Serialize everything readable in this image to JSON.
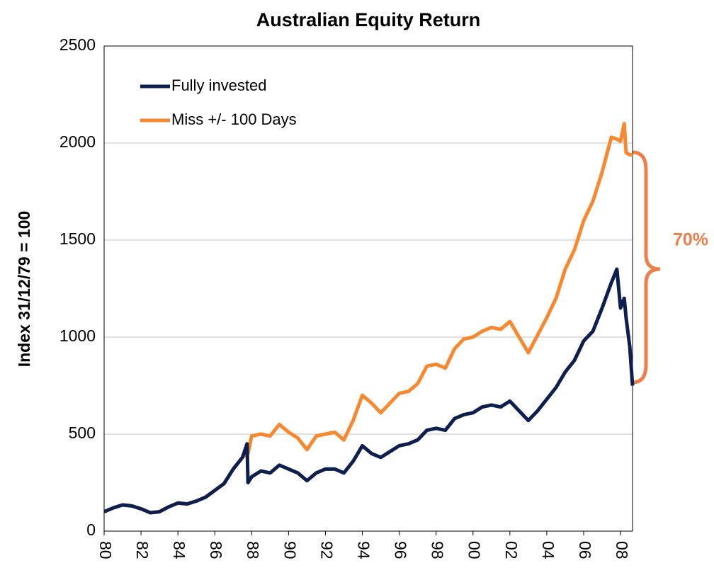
{
  "chart_data": {
    "type": "line",
    "title": "Australian Equity Return",
    "y_label": "Index 31/12/79 = 100",
    "annotation": "70%",
    "x": [
      1980,
      1980.5,
      1981,
      1981.5,
      1982,
      1982.5,
      1983,
      1983.5,
      1984,
      1984.5,
      1985,
      1985.5,
      1986,
      1986.5,
      1987,
      1987.5,
      1987.75,
      1987.8,
      1988,
      1988.5,
      1989,
      1989.5,
      1990,
      1990.5,
      1991,
      1991.5,
      1992,
      1992.5,
      1993,
      1993.5,
      1994,
      1994.5,
      1995,
      1995.5,
      1996,
      1996.5,
      1997,
      1997.5,
      1998,
      1998.5,
      1999,
      1999.5,
      2000,
      2000.5,
      2001,
      2001.5,
      2002,
      2002.5,
      2003,
      2003.5,
      2004,
      2004.5,
      2005,
      2005.5,
      2006,
      2006.5,
      2007,
      2007.5,
      2007.8,
      2008,
      2008.2,
      2008.3,
      2008.5,
      2008.65
    ],
    "series": [
      {
        "name": "Fully invested",
        "color": "#0d1f4f",
        "values": [
          100,
          120,
          135,
          130,
          115,
          95,
          100,
          125,
          145,
          140,
          155,
          175,
          210,
          245,
          320,
          380,
          450,
          250,
          280,
          310,
          300,
          340,
          320,
          300,
          260,
          300,
          320,
          320,
          300,
          360,
          440,
          400,
          380,
          410,
          440,
          450,
          470,
          520,
          530,
          520,
          580,
          600,
          610,
          640,
          650,
          640,
          670,
          620,
          570,
          620,
          680,
          740,
          820,
          880,
          980,
          1030,
          1150,
          1280,
          1350,
          1150,
          1200,
          1100,
          950,
          750
        ]
      },
      {
        "name": "Miss +/- 100 Days",
        "color": "#f7882f",
        "values": [
          100,
          120,
          135,
          130,
          115,
          95,
          100,
          125,
          145,
          140,
          155,
          175,
          210,
          245,
          320,
          380,
          400,
          400,
          490,
          500,
          490,
          550,
          510,
          480,
          420,
          490,
          500,
          510,
          470,
          570,
          700,
          660,
          610,
          660,
          710,
          720,
          760,
          850,
          860,
          840,
          940,
          990,
          1000,
          1030,
          1050,
          1040,
          1080,
          1000,
          920,
          1010,
          1100,
          1200,
          1350,
          1450,
          1600,
          1700,
          1850,
          2030,
          2020,
          2010,
          2100,
          1950,
          1940,
          1940
        ]
      }
    ],
    "xlim": [
      1980,
      2008.65
    ],
    "xticks": [
      {
        "value": 1980,
        "label": "80"
      },
      {
        "value": 1982,
        "label": "82"
      },
      {
        "value": 1984,
        "label": "84"
      },
      {
        "value": 1986,
        "label": "86"
      },
      {
        "value": 1988,
        "label": "88"
      },
      {
        "value": 1990,
        "label": "90"
      },
      {
        "value": 1992,
        "label": "92"
      },
      {
        "value": 1994,
        "label": "94"
      },
      {
        "value": 1996,
        "label": "96"
      },
      {
        "value": 1998,
        "label": "98"
      },
      {
        "value": 2000,
        "label": "00"
      },
      {
        "value": 2002,
        "label": "02"
      },
      {
        "value": 2004,
        "label": "04"
      },
      {
        "value": 2006,
        "label": "06"
      },
      {
        "value": 2008,
        "label": "08"
      }
    ],
    "ylim": [
      0,
      2500
    ],
    "yticks": [
      0,
      500,
      1000,
      1500,
      2000,
      2500
    ],
    "grid": true,
    "legend": "upper left"
  }
}
